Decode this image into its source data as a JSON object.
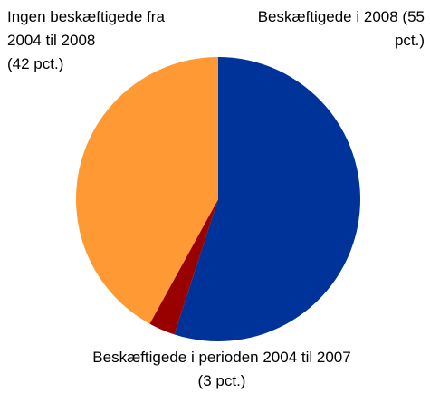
{
  "chart_data": {
    "type": "pie",
    "categories": [
      "Beskæftigede i 2008",
      "Beskæftigede i perioden 2004 til 2007",
      "Ingen beskæftigede fra 2004 til 2008"
    ],
    "values": [
      55,
      3,
      42
    ],
    "value_labels": [
      "(55 pct.)",
      "(3 pct.)",
      "(42 pct.)"
    ],
    "colors": [
      "#003399",
      "#990000",
      "#ff9933"
    ]
  }
}
